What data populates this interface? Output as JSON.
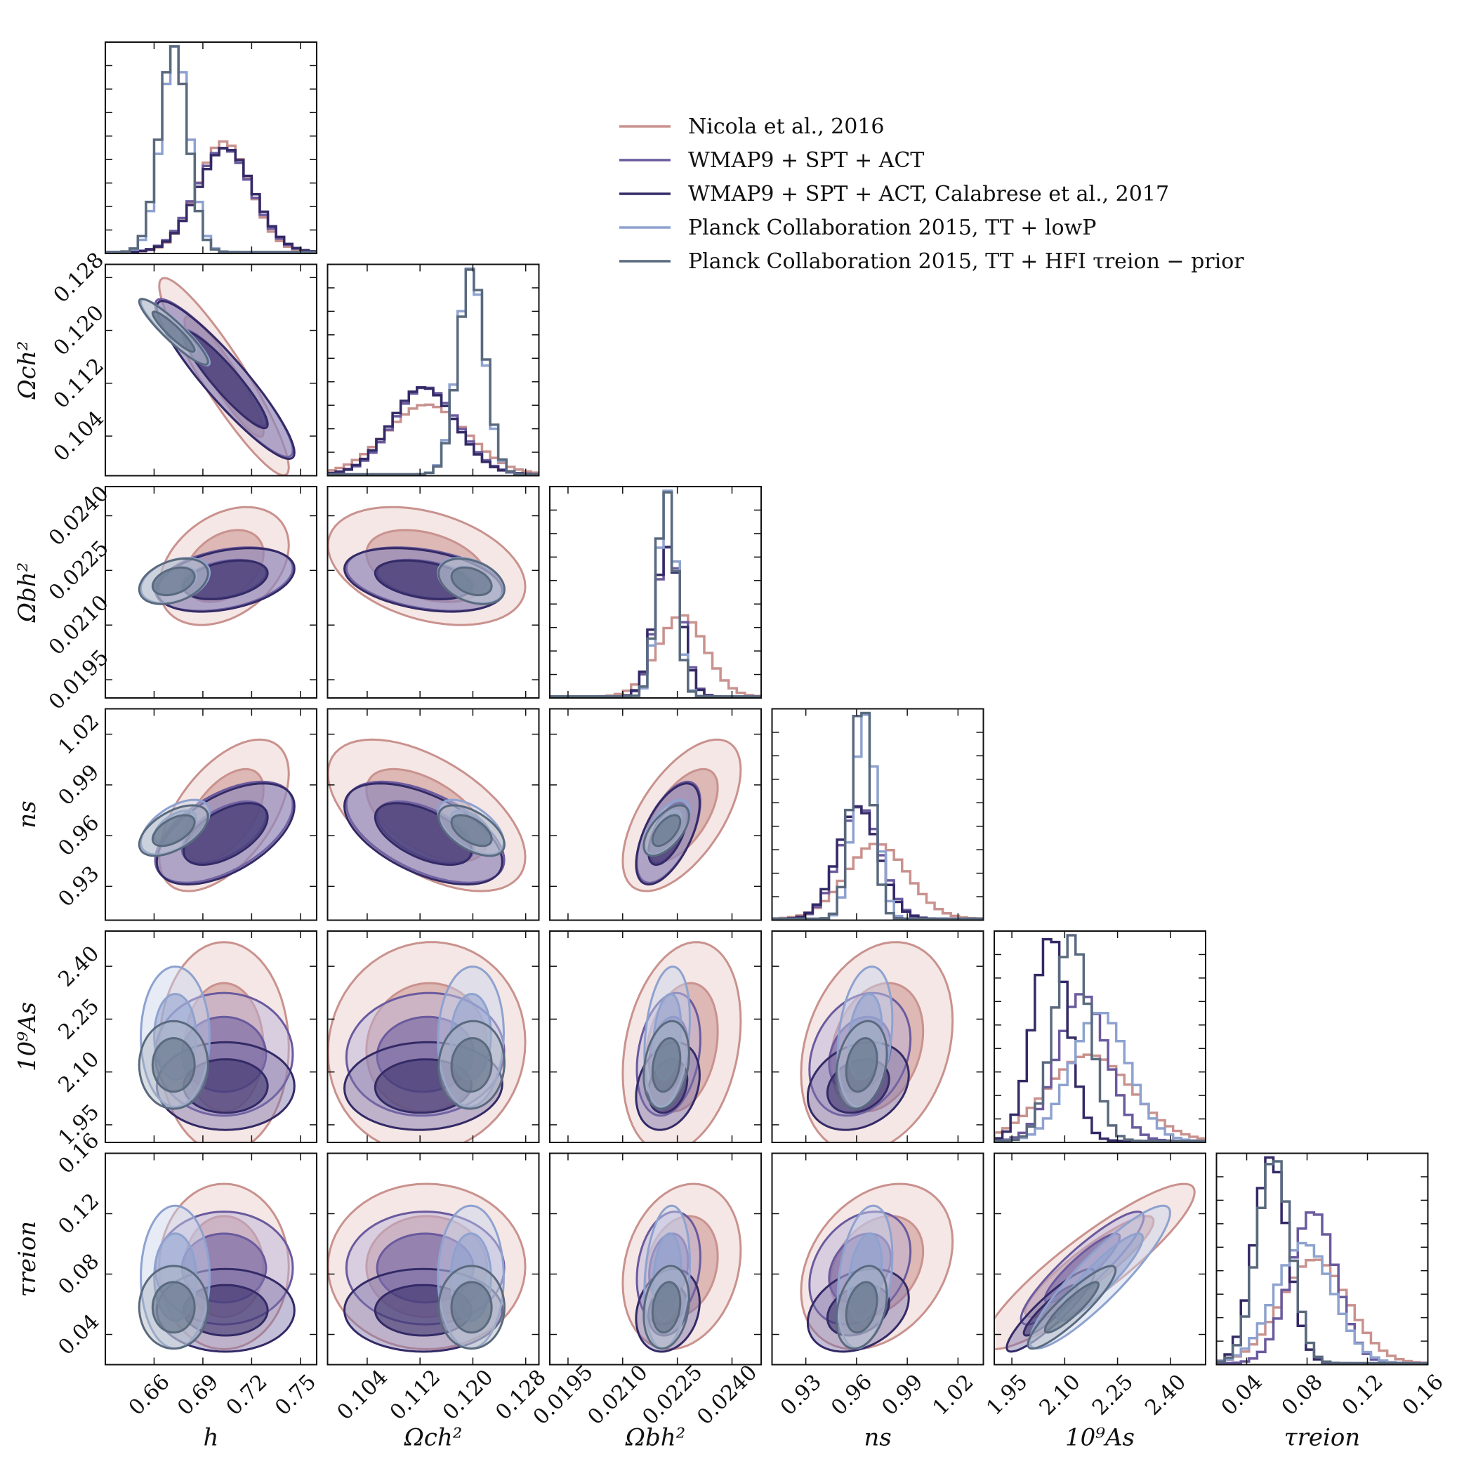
{
  "chart_data": {
    "type": "corner",
    "parameters": [
      {
        "key": "h",
        "label": "h",
        "range": [
          0.63,
          0.76
        ],
        "ticks": [
          "0.66",
          "0.69",
          "0.72",
          "0.75"
        ],
        "tick_values": [
          0.66,
          0.69,
          0.72,
          0.75
        ]
      },
      {
        "key": "omch2",
        "label": "Ωch²",
        "range": [
          0.098,
          0.13
        ],
        "ticks": [
          "0.104",
          "0.112",
          "0.120",
          "0.128"
        ],
        "tick_values": [
          0.104,
          0.112,
          0.12,
          0.128
        ]
      },
      {
        "key": "ombh2",
        "label": "Ωbh²",
        "range": [
          0.019,
          0.0248
        ],
        "ticks": [
          "0.0195",
          "0.0210",
          "0.0225",
          "0.0240"
        ],
        "tick_values": [
          0.0195,
          0.021,
          0.0225,
          0.024
        ]
      },
      {
        "key": "ns",
        "label": "ns",
        "range": [
          0.91,
          1.035
        ],
        "ticks": [
          "0.93",
          "0.96",
          "0.99",
          "1.02"
        ],
        "tick_values": [
          0.93,
          0.96,
          0.99,
          1.02
        ]
      },
      {
        "key": "As",
        "label": "10⁹As",
        "range": [
          1.9,
          2.5
        ],
        "ticks": [
          "1.95",
          "2.10",
          "2.25",
          "2.40"
        ],
        "tick_values": [
          1.95,
          2.1,
          2.25,
          2.4
        ]
      },
      {
        "key": "tau",
        "label": "τreion",
        "range": [
          0.02,
          0.16
        ],
        "ticks": [
          "0.04",
          "0.08",
          "0.12",
          "0.16"
        ],
        "tick_values": [
          0.04,
          0.08,
          0.12,
          0.16
        ]
      }
    ],
    "series": [
      {
        "name": "Nicola et al., 2016",
        "color": "#c9928e",
        "fill": "#e9c9c6",
        "mean": [
          0.703,
          0.113,
          0.02262,
          0.972,
          2.17,
          0.085
        ],
        "sigma": [
          0.016,
          0.006,
          0.00065,
          0.018,
          0.12,
          0.022
        ]
      },
      {
        "name": "WMAP9 + SPT + ACT",
        "color": "#6a5a9e",
        "fill": "#b9b0d6",
        "mean": [
          0.703,
          0.1128,
          0.02226,
          0.962,
          2.15,
          0.084
        ],
        "sigma": [
          0.017,
          0.0048,
          0.00035,
          0.012,
          0.07,
          0.015
        ]
      },
      {
        "name": "WMAP9 + SPT + ACT, Calabrese et al., 2017",
        "color": "#332a66",
        "fill": "#7c71a9",
        "mean": [
          0.704,
          0.1125,
          0.02224,
          0.961,
          2.06,
          0.056
        ],
        "sigma": [
          0.017,
          0.0048,
          0.00035,
          0.012,
          0.05,
          0.011
        ]
      },
      {
        "name": "Planck Collaboration 2015, TT + lowP",
        "color": "#8ea2cf",
        "fill": "#c8d3ec",
        "mean": [
          0.673,
          0.1197,
          0.02222,
          0.965,
          2.2,
          0.078
        ],
        "sigma": [
          0.0085,
          0.002,
          0.00025,
          0.0065,
          0.08,
          0.019
        ]
      },
      {
        "name": "Planck Collaboration 2015, TT + HFI τreion − prior",
        "color": "#5a6a7e",
        "fill": "#aab4be",
        "mean": [
          0.672,
          0.1198,
          0.0222,
          0.963,
          2.12,
          0.058
        ],
        "sigma": [
          0.0085,
          0.002,
          0.00025,
          0.006,
          0.05,
          0.011
        ]
      }
    ],
    "correlations": {
      "h-omch2": -0.92,
      "h-ombh2": 0.35,
      "h-ns": 0.55,
      "h-As": 0.0,
      "h-tau": 0.0,
      "omch2-ombh2": -0.35,
      "omch2-ns": -0.55,
      "omch2-As": 0.05,
      "omch2-tau": 0.0,
      "ombh2-ns": 0.6,
      "ombh2-As": 0.25,
      "ombh2-tau": 0.2,
      "ns-As": 0.25,
      "ns-tau": 0.3,
      "As-tau": 0.9
    },
    "legend": {
      "position": "top-right",
      "entries": [
        "Nicola et al., 2016",
        "WMAP9 + SPT + ACT",
        "WMAP9 + SPT + ACT, Calabrese et al., 2017",
        "Planck Collaboration 2015, TT + lowP",
        "Planck Collaboration 2015, TT + HFI τreion − prior"
      ]
    }
  }
}
